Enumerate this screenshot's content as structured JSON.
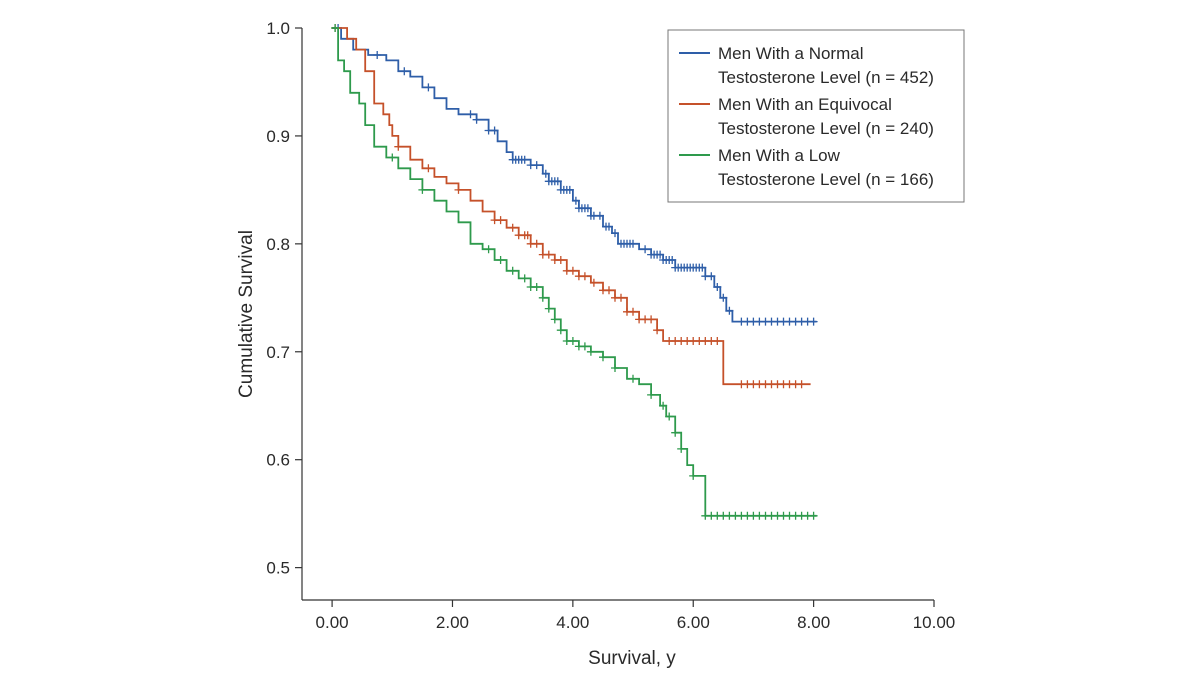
{
  "chart_data": {
    "type": "line",
    "subtype": "kaplan-meier",
    "title": "",
    "xlabel": "Survival, y",
    "ylabel": "Cumulative Survival",
    "xlim": [
      -0.5,
      10.0
    ],
    "ylim": [
      0.47,
      1.0
    ],
    "x_ticks": [
      0,
      2,
      4,
      6,
      8,
      10
    ],
    "x_tick_labels": [
      "0.00",
      "2.00",
      "4.00",
      "6.00",
      "8.00",
      "10.00"
    ],
    "y_ticks": [
      0.5,
      0.6,
      0.7,
      0.8,
      0.9,
      1.0
    ],
    "y_tick_labels": [
      "0.5",
      "0.6",
      "0.7",
      "0.8",
      "0.9",
      "1.0"
    ],
    "grid": false,
    "legend_position": "top-right",
    "series": [
      {
        "name": "Men With a Normal Testosterone Level (n = 452)",
        "legend_line1": "Men With a Normal",
        "legend_line2": "Testosterone Level (n = 452)",
        "color": "#2e5ea8",
        "steps": [
          [
            0,
            1.0
          ],
          [
            0.15,
            0.99
          ],
          [
            0.35,
            0.98
          ],
          [
            0.6,
            0.975
          ],
          [
            0.9,
            0.97
          ],
          [
            1.1,
            0.96
          ],
          [
            1.3,
            0.955
          ],
          [
            1.5,
            0.945
          ],
          [
            1.7,
            0.935
          ],
          [
            1.9,
            0.925
          ],
          [
            2.1,
            0.92
          ],
          [
            2.4,
            0.915
          ],
          [
            2.6,
            0.905
          ],
          [
            2.75,
            0.895
          ],
          [
            2.9,
            0.885
          ],
          [
            3.0,
            0.878
          ],
          [
            3.3,
            0.873
          ],
          [
            3.5,
            0.865
          ],
          [
            3.6,
            0.858
          ],
          [
            3.8,
            0.85
          ],
          [
            4.0,
            0.84
          ],
          [
            4.1,
            0.833
          ],
          [
            4.3,
            0.826
          ],
          [
            4.5,
            0.816
          ],
          [
            4.65,
            0.81
          ],
          [
            4.75,
            0.8
          ],
          [
            5.1,
            0.795
          ],
          [
            5.3,
            0.79
          ],
          [
            5.5,
            0.785
          ],
          [
            5.7,
            0.778
          ],
          [
            6.2,
            0.77
          ],
          [
            6.35,
            0.76
          ],
          [
            6.45,
            0.75
          ],
          [
            6.55,
            0.738
          ],
          [
            6.65,
            0.728
          ],
          [
            8.05,
            0.728
          ]
        ],
        "censor_times": [
          0.1,
          0.75,
          1.2,
          1.6,
          2.3,
          2.4,
          2.6,
          2.7,
          3.0,
          3.05,
          3.1,
          3.15,
          3.2,
          3.3,
          3.4,
          3.55,
          3.6,
          3.65,
          3.7,
          3.75,
          3.8,
          3.85,
          3.9,
          3.95,
          4.05,
          4.1,
          4.15,
          4.2,
          4.25,
          4.3,
          4.35,
          4.45,
          4.55,
          4.6,
          4.7,
          4.8,
          4.85,
          4.9,
          4.95,
          5.0,
          5.2,
          5.3,
          5.35,
          5.4,
          5.45,
          5.5,
          5.55,
          5.6,
          5.65,
          5.7,
          5.75,
          5.8,
          5.85,
          5.9,
          5.95,
          6.0,
          6.05,
          6.1,
          6.15,
          6.2,
          6.3,
          6.4,
          6.5,
          6.6,
          6.8,
          6.9,
          7.0,
          7.1,
          7.2,
          7.3,
          7.4,
          7.5,
          7.6,
          7.7,
          7.8,
          7.9,
          8.0
        ]
      },
      {
        "name": "Men With an Equivocal Testosterone Level (n = 240)",
        "legend_line1": "Men With an Equivocal",
        "legend_line2": "Testosterone Level (n = 240)",
        "color": "#c5512a",
        "steps": [
          [
            0,
            1.0
          ],
          [
            0.25,
            0.99
          ],
          [
            0.4,
            0.98
          ],
          [
            0.55,
            0.96
          ],
          [
            0.7,
            0.93
          ],
          [
            0.85,
            0.92
          ],
          [
            0.95,
            0.91
          ],
          [
            1.0,
            0.9
          ],
          [
            1.1,
            0.89
          ],
          [
            1.3,
            0.878
          ],
          [
            1.5,
            0.87
          ],
          [
            1.7,
            0.862
          ],
          [
            1.9,
            0.856
          ],
          [
            2.1,
            0.85
          ],
          [
            2.3,
            0.84
          ],
          [
            2.5,
            0.83
          ],
          [
            2.7,
            0.822
          ],
          [
            2.9,
            0.815
          ],
          [
            3.1,
            0.808
          ],
          [
            3.3,
            0.8
          ],
          [
            3.5,
            0.79
          ],
          [
            3.7,
            0.785
          ],
          [
            3.9,
            0.775
          ],
          [
            4.1,
            0.77
          ],
          [
            4.3,
            0.764
          ],
          [
            4.5,
            0.757
          ],
          [
            4.7,
            0.75
          ],
          [
            4.9,
            0.737
          ],
          [
            5.1,
            0.73
          ],
          [
            5.4,
            0.72
          ],
          [
            5.5,
            0.71
          ],
          [
            6.5,
            0.67
          ],
          [
            7.95,
            0.67
          ]
        ],
        "censor_times": [
          0.05,
          1.1,
          1.6,
          2.1,
          2.7,
          2.8,
          3.0,
          3.1,
          3.2,
          3.25,
          3.3,
          3.4,
          3.5,
          3.6,
          3.7,
          3.8,
          3.9,
          4.0,
          4.1,
          4.2,
          4.35,
          4.5,
          4.6,
          4.7,
          4.8,
          4.9,
          5.0,
          5.1,
          5.2,
          5.3,
          5.4,
          5.6,
          5.7,
          5.8,
          5.9,
          6.0,
          6.1,
          6.2,
          6.3,
          6.4,
          6.8,
          6.9,
          7.0,
          7.1,
          7.2,
          7.3,
          7.4,
          7.5,
          7.6,
          7.7,
          7.8
        ]
      },
      {
        "name": "Men With a Low Testosterone Level (n = 166)",
        "legend_line1": "Men With a Low",
        "legend_line2": "Testosterone Level (n = 166)",
        "color": "#2e9a4c",
        "steps": [
          [
            0,
            1.0
          ],
          [
            0.1,
            0.97
          ],
          [
            0.2,
            0.96
          ],
          [
            0.3,
            0.94
          ],
          [
            0.45,
            0.93
          ],
          [
            0.55,
            0.91
          ],
          [
            0.7,
            0.89
          ],
          [
            0.9,
            0.88
          ],
          [
            1.1,
            0.87
          ],
          [
            1.3,
            0.86
          ],
          [
            1.5,
            0.85
          ],
          [
            1.7,
            0.84
          ],
          [
            1.9,
            0.83
          ],
          [
            2.1,
            0.82
          ],
          [
            2.3,
            0.8
          ],
          [
            2.5,
            0.795
          ],
          [
            2.7,
            0.785
          ],
          [
            2.9,
            0.775
          ],
          [
            3.1,
            0.768
          ],
          [
            3.3,
            0.76
          ],
          [
            3.5,
            0.75
          ],
          [
            3.6,
            0.74
          ],
          [
            3.7,
            0.73
          ],
          [
            3.8,
            0.72
          ],
          [
            3.9,
            0.71
          ],
          [
            4.1,
            0.705
          ],
          [
            4.3,
            0.7
          ],
          [
            4.5,
            0.695
          ],
          [
            4.7,
            0.685
          ],
          [
            4.9,
            0.675
          ],
          [
            5.1,
            0.67
          ],
          [
            5.3,
            0.66
          ],
          [
            5.45,
            0.65
          ],
          [
            5.55,
            0.64
          ],
          [
            5.7,
            0.625
          ],
          [
            5.8,
            0.61
          ],
          [
            5.9,
            0.595
          ],
          [
            6.0,
            0.585
          ],
          [
            6.2,
            0.548
          ],
          [
            8.05,
            0.548
          ]
        ],
        "censor_times": [
          0.05,
          1.0,
          1.5,
          2.6,
          2.8,
          3.0,
          3.2,
          3.3,
          3.4,
          3.5,
          3.6,
          3.7,
          3.8,
          3.9,
          4.0,
          4.1,
          4.2,
          4.3,
          4.5,
          4.7,
          5.0,
          5.3,
          5.5,
          5.6,
          5.7,
          5.8,
          6.0,
          6.2,
          6.3,
          6.4,
          6.5,
          6.6,
          6.7,
          6.8,
          6.9,
          7.0,
          7.1,
          7.2,
          7.3,
          7.4,
          7.5,
          7.6,
          7.7,
          7.8,
          7.9,
          8.0
        ]
      }
    ]
  }
}
